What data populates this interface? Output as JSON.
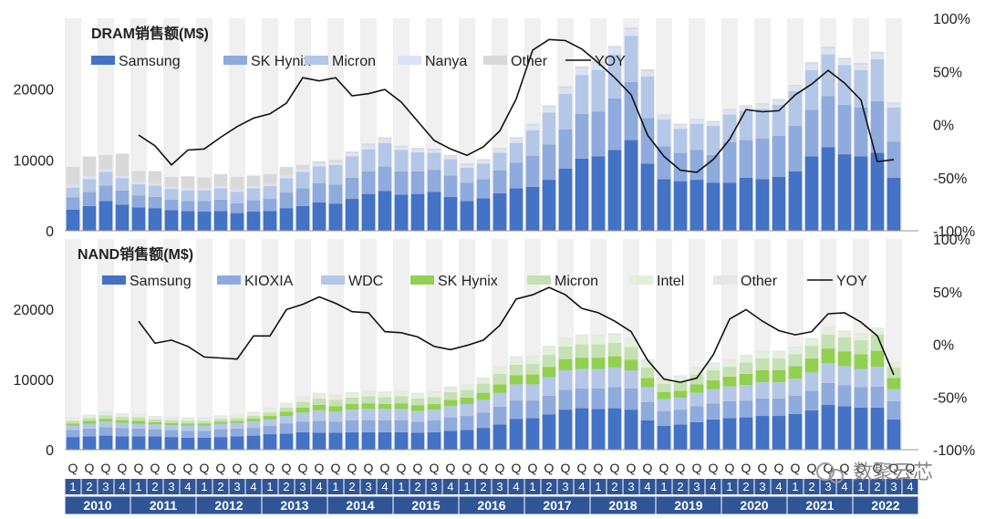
{
  "watermark": "数聚云芯",
  "chart_data": {
    "type": "bar",
    "stacked": true,
    "years": [
      "2010",
      "2011",
      "2012",
      "2013",
      "2014",
      "2015",
      "2016",
      "2017",
      "2018",
      "2019",
      "2020",
      "2021",
      "2022"
    ],
    "quarter_letter": "Q",
    "quarter_numbers": [
      "1",
      "2",
      "3",
      "4"
    ],
    "panels": [
      {
        "title": "DRAM销售额(M$)",
        "ylim": [
          0,
          30000
        ],
        "y_ticks": [
          0,
          10000,
          20000
        ],
        "y_tick_labels": [
          "0",
          "10000",
          "20000"
        ],
        "y2lim": [
          -100,
          100
        ],
        "y2_ticks": [
          -100,
          -50,
          0,
          50,
          100
        ],
        "y2_tick_labels": [
          "-100%",
          "-50%",
          "0%",
          "50%",
          "100%"
        ],
        "yoy_label": "YOY",
        "yoy_color": "#111111",
        "series": [
          {
            "name": "Samsung",
            "color": "#4472c4",
            "values": [
              3000,
              3500,
              4200,
              3700,
              3300,
              3200,
              2900,
              2800,
              2700,
              2800,
              2500,
              2700,
              2800,
              3200,
              3500,
              4000,
              3800,
              4500,
              5200,
              5600,
              5100,
              5200,
              5500,
              4800,
              4200,
              4600,
              5300,
              6000,
              6200,
              7200,
              8800,
              10200,
              10500,
              11400,
              12800,
              9500,
              7300,
              7000,
              7200,
              6800,
              6800,
              7500,
              7300,
              7600,
              8400,
              10500,
              11800,
              10800,
              10500,
              11000,
              7500
            ]
          },
          {
            "name": "SK Hynix",
            "color": "#8faadc",
            "values": [
              1700,
              2000,
              2200,
              2000,
              1700,
              1600,
              1500,
              1400,
              1500,
              1600,
              1400,
              1600,
              1700,
              2200,
              2500,
              2700,
              2700,
              3000,
              3200,
              3500,
              3300,
              3200,
              3100,
              3000,
              2600,
              2700,
              3200,
              3600,
              4400,
              5000,
              5500,
              6300,
              6300,
              7300,
              8200,
              6400,
              4600,
              4000,
              4200,
              3900,
              5700,
              5300,
              5700,
              5800,
              6400,
              6600,
              7200,
              7000,
              6900,
              7300,
              5100
            ]
          },
          {
            "name": "Micron",
            "color": "#b4c7e7",
            "values": [
              1400,
              1800,
              1900,
              1700,
              1600,
              1600,
              1500,
              1500,
              1500,
              1600,
              1600,
              1700,
              1800,
              2000,
              2300,
              2400,
              2800,
              3000,
              3100,
              3300,
              3000,
              2700,
              2400,
              2300,
              2100,
              2200,
              2500,
              2800,
              3600,
              4500,
              5000,
              5500,
              5900,
              6200,
              6500,
              5900,
              3800,
              3400,
              3700,
              4100,
              3900,
              4100,
              4200,
              4400,
              4900,
              5600,
              5900,
              5600,
              5300,
              5900,
              4800
            ]
          },
          {
            "name": "Nanya",
            "color": "#dae3f3",
            "values": [
              400,
              400,
              400,
              300,
              300,
              300,
              300,
              300,
              300,
              300,
              300,
              300,
              300,
              400,
              400,
              400,
              400,
              400,
              500,
              500,
              400,
              400,
              400,
              400,
              400,
              400,
              500,
              600,
              700,
              700,
              800,
              900,
              900,
              900,
              900,
              700,
              500,
              500,
              500,
              500,
              600,
              600,
              600,
              600,
              700,
              800,
              800,
              700,
              700,
              800,
              500
            ]
          },
          {
            "name": "Other",
            "color": "#d9d9d9",
            "values": [
              2500,
              2800,
              2000,
              3200,
              1500,
              1700,
              1400,
              1700,
              1500,
              1700,
              1800,
              1500,
              1400,
              1200,
              600,
              300,
              300,
              300,
              300,
              300,
              200,
              200,
              200,
              200,
              200,
              200,
              200,
              200,
              200,
              300,
              300,
              300,
              300,
              300,
              300,
              300,
              200,
              200,
              200,
              200,
              200,
              200,
              200,
              200,
              200,
              300,
              300,
              300,
              300,
              300,
              200
            ]
          }
        ],
        "yoy": [
          null,
          null,
          null,
          null,
          -10,
          -20,
          -38,
          -24,
          -23,
          -12,
          -2,
          6,
          10,
          20,
          44,
          41,
          44,
          27,
          29,
          33,
          21,
          3,
          -15,
          -23,
          -29,
          -21,
          -6,
          24,
          70,
          80,
          79,
          71,
          58,
          44,
          28,
          -10,
          -30,
          -43,
          -45,
          -33,
          -14,
          14,
          12,
          13,
          28,
          38,
          51,
          39,
          23,
          -35,
          -33
        ]
      },
      {
        "title": "NAND销售额(M$)",
        "ylim": [
          0,
          30000
        ],
        "y_ticks": [
          0,
          10000,
          20000
        ],
        "y_tick_labels": [
          "0",
          "10000",
          "20000"
        ],
        "y2lim": [
          -100,
          100
        ],
        "y2_ticks": [
          -100,
          -50,
          0,
          50,
          100
        ],
        "y2_tick_labels": [
          "-100%",
          "-50%",
          "0%",
          "50%",
          "100%"
        ],
        "yoy_label": "YOY",
        "yoy_color": "#111111",
        "series": [
          {
            "name": "Samsung",
            "color": "#4472c4",
            "values": [
              1800,
              1900,
              2000,
              1900,
              1900,
              1900,
              1800,
              1700,
              1700,
              1800,
              1900,
              2000,
              2200,
              2300,
              2500,
              2400,
              2400,
              2500,
              2500,
              2500,
              2500,
              2400,
              2500,
              2700,
              2800,
              3100,
              3600,
              4400,
              4500,
              5000,
              5700,
              5900,
              5800,
              5900,
              5700,
              4200,
              3400,
              3600,
              3900,
              4300,
              4500,
              4600,
              4800,
              4800,
              5100,
              5600,
              6400,
              6200,
              6000,
              6000,
              4300
            ]
          },
          {
            "name": "KIOXIA",
            "color": "#8faadc",
            "values": [
              1000,
              1100,
              1200,
              1200,
              1100,
              1000,
              1000,
              1000,
              1000,
              1100,
              1100,
              1100,
              1200,
              1400,
              1500,
              1700,
              1600,
              1700,
              1700,
              1700,
              1700,
              1600,
              1700,
              1900,
              2000,
              2200,
              2500,
              2600,
              2500,
              2700,
              2800,
              2800,
              2900,
              3000,
              3000,
              2600,
              2100,
              2100,
              2300,
              2300,
              2400,
              2400,
              2500,
              2500,
              2600,
              2800,
              3100,
              3000,
              2900,
              3000,
              2600
            ]
          },
          {
            "name": "WDC",
            "color": "#b4c7e7",
            "values": [
              600,
              700,
              800,
              700,
              700,
              700,
              700,
              700,
              700,
              800,
              800,
              900,
              900,
              1100,
              1300,
              1500,
              1400,
              1500,
              1600,
              1600,
              1600,
              1500,
              1500,
              1600,
              1700,
              1800,
              2000,
              2300,
              2300,
              2600,
              2800,
              2800,
              2800,
              2800,
              2600,
              2100,
              1700,
              1700,
              1900,
              2000,
              2100,
              2200,
              2300,
              2300,
              2400,
              2600,
              2800,
              2700,
              2600,
              2800,
              1700
            ]
          },
          {
            "name": "SK Hynix",
            "color": "#92d050",
            "values": [
              300,
              400,
              400,
              400,
              400,
              300,
              300,
              300,
              300,
              300,
              300,
              400,
              500,
              600,
              700,
              800,
              800,
              800,
              800,
              700,
              800,
              800,
              800,
              900,
              900,
              1000,
              1200,
              1300,
              1400,
              1500,
              1600,
              1600,
              1600,
              1600,
              1500,
              1300,
              1000,
              1000,
              1200,
              1300,
              1400,
              1600,
              1700,
              1700,
              1800,
              2000,
              2100,
              2100,
              2100,
              2300,
              1600
            ]
          },
          {
            "name": "Micron",
            "color": "#c5e0b4",
            "values": [
              400,
              400,
              500,
              500,
              500,
              400,
              400,
              400,
              400,
              400,
              400,
              400,
              500,
              600,
              800,
              900,
              900,
              900,
              1000,
              1000,
              1000,
              1000,
              1000,
              1100,
              1100,
              1300,
              1500,
              1500,
              1500,
              1700,
              1800,
              1900,
              1900,
              1900,
              1800,
              1500,
              1200,
              1200,
              1400,
              1400,
              1400,
              1600,
              1700,
              1700,
              1700,
              1800,
              2000,
              2000,
              2000,
              2300,
              1500
            ]
          },
          {
            "name": "Intel",
            "color": "#e2f0d9",
            "values": [
              300,
              300,
              300,
              300,
              300,
              300,
              300,
              300,
              300,
              300,
              300,
              400,
              400,
              400,
              500,
              500,
              500,
              500,
              500,
              500,
              500,
              500,
              500,
              500,
              500,
              600,
              700,
              800,
              800,
              900,
              900,
              1000,
              1000,
              1000,
              900,
              800,
              700,
              700,
              800,
              800,
              800,
              800,
              800,
              800,
              800,
              800,
              800,
              700,
              700,
              700,
              500
            ]
          },
          {
            "name": "Other",
            "color": "#e7e6e6",
            "values": [
              200,
              200,
              200,
              200,
              200,
              200,
              200,
              200,
              200,
              200,
              200,
              200,
              300,
              300,
              300,
              300,
              300,
              300,
              300,
              300,
              300,
              300,
              300,
              300,
              300,
              300,
              400,
              400,
              400,
              400,
              400,
              400,
              400,
              400,
              400,
              400,
              300,
              300,
              300,
              300,
              300,
              300,
              300,
              300,
              300,
              300,
              300,
              300,
              300,
              300,
              300
            ]
          }
        ],
        "yoy": [
          null,
          null,
          null,
          null,
          22,
          1,
          4,
          -2,
          -12,
          -13,
          -14,
          8,
          8,
          33,
          38,
          45,
          39,
          31,
          30,
          12,
          11,
          7,
          -2,
          -5,
          -1,
          4,
          18,
          43,
          47,
          54,
          47,
          34,
          30,
          22,
          12,
          -15,
          -33,
          -36,
          -32,
          -10,
          24,
          33,
          22,
          13,
          9,
          12,
          29,
          30,
          21,
          8,
          -29
        ]
      }
    ]
  }
}
